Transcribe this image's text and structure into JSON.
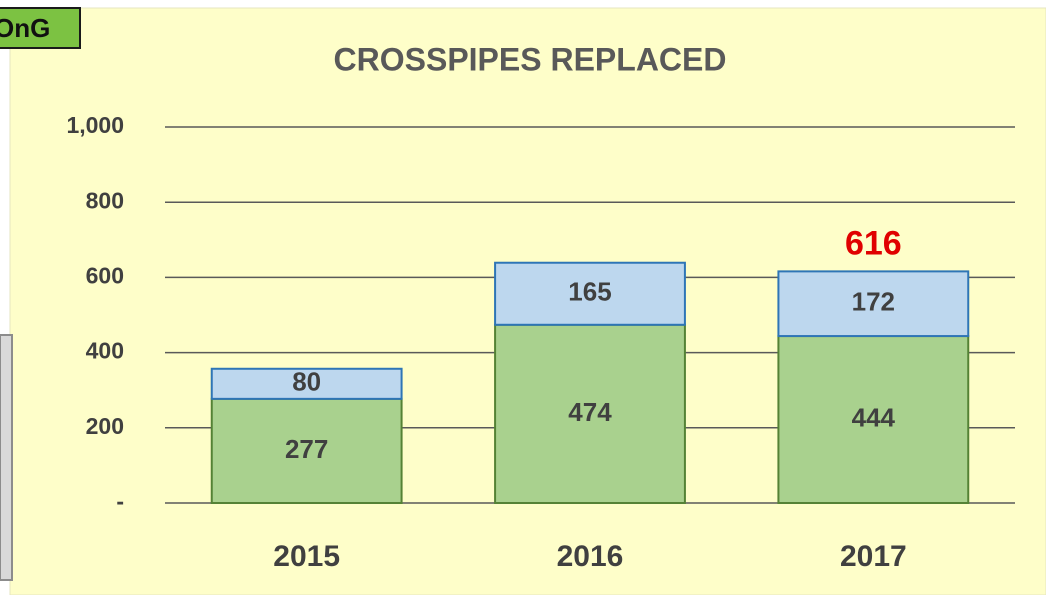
{
  "badge": "OnG",
  "chart_data": {
    "type": "stacked_bar",
    "title": "CROSSPIPES REPLACED",
    "categories": [
      "2015",
      "2016",
      "2017"
    ],
    "series": [
      {
        "color": "#a9d18e",
        "values": [
          277,
          474,
          444
        ]
      },
      {
        "color": "#bdd7ee",
        "values": [
          80,
          165,
          172
        ]
      }
    ],
    "totals": [
      null,
      null,
      616
    ],
    "ylim": [
      0,
      1000
    ],
    "yticks": [
      {
        "value": 0,
        "label": "-"
      },
      200,
      400,
      600,
      800,
      {
        "value": 1000,
        "label": "1,000"
      }
    ],
    "grid": true
  }
}
